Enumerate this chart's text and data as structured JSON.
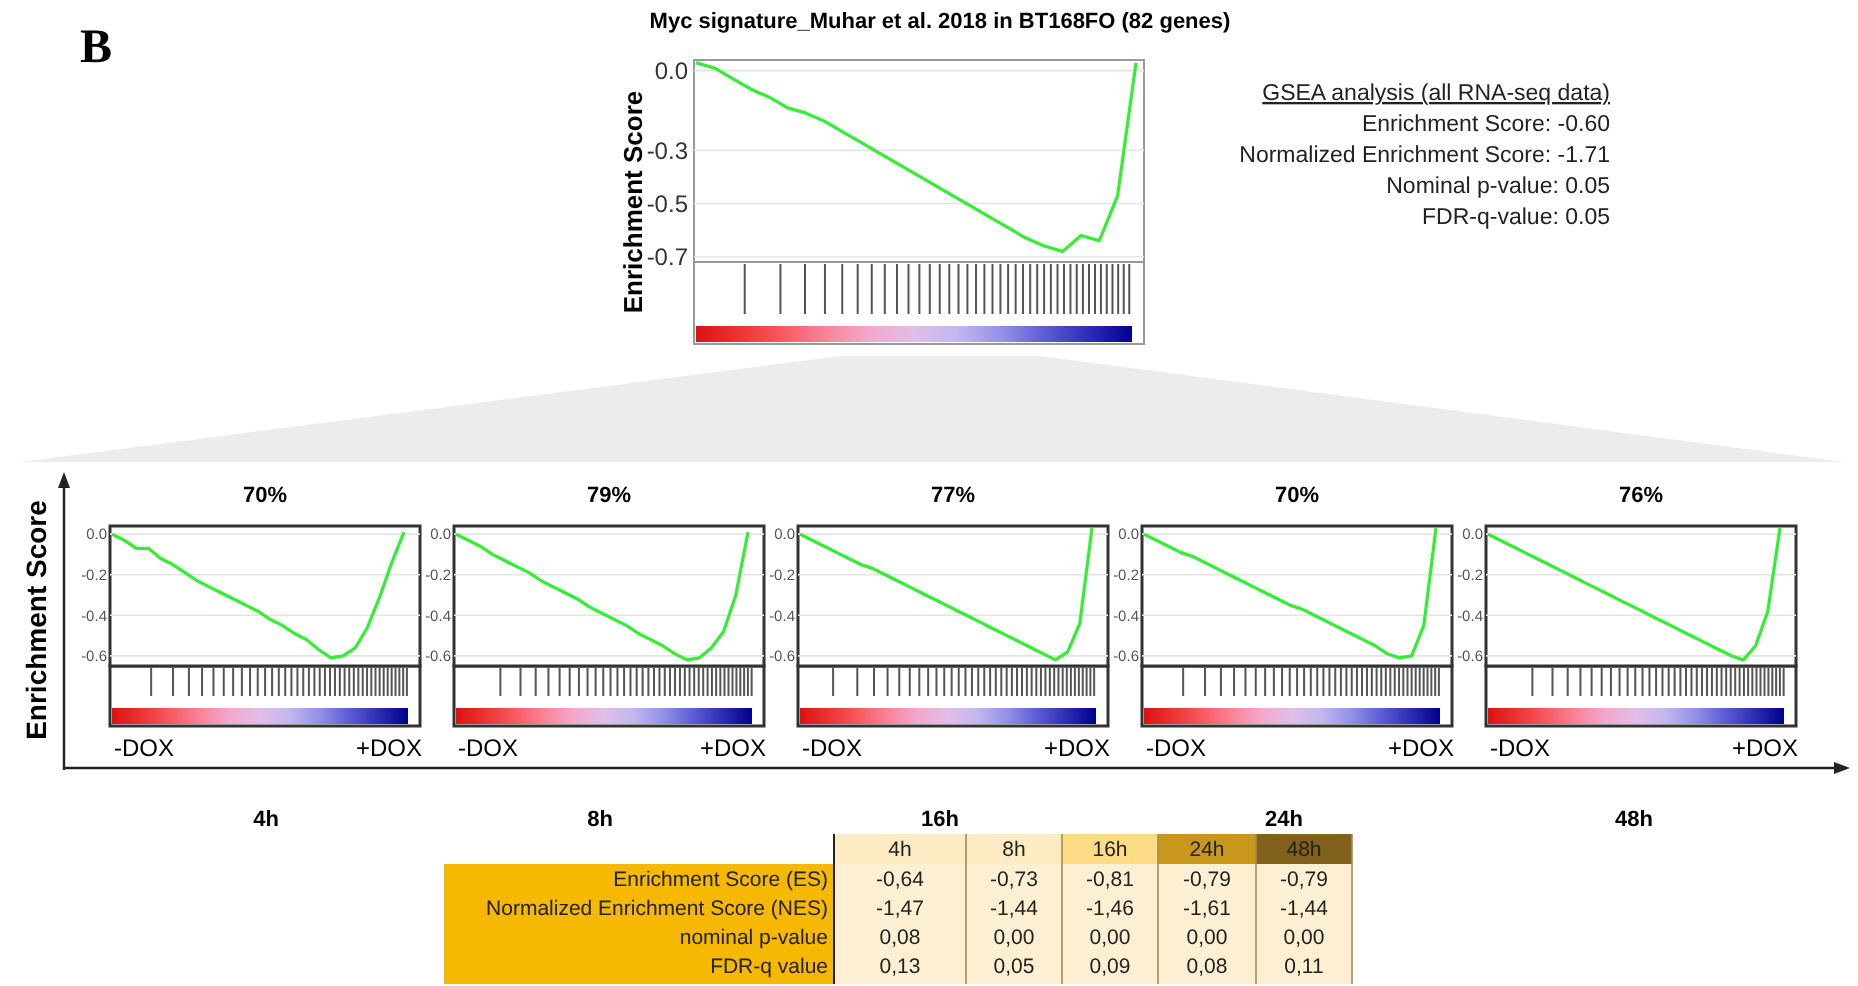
{
  "chart_data": [
    {
      "type": "line",
      "title": "Myc signature_Muhar et al. 2018 in BT168FO (82 genes)",
      "ylabel": "Enrichment Score",
      "categories": [
        null,
        null,
        null,
        null,
        null,
        null,
        null,
        null,
        null,
        null,
        null,
        null,
        null,
        null,
        null,
        null,
        null,
        null,
        null,
        null,
        null,
        null,
        null,
        null,
        null
      ],
      "ylim": [
        -0.72,
        0.04
      ],
      "yticks": [
        {
          "value": 0,
          "label": "0.0"
        },
        {
          "value": -0.3,
          "label": "-0.3"
        },
        {
          "value": -0.5,
          "label": "-0.5"
        },
        {
          "value": -0.7,
          "label": "-0.7"
        }
      ],
      "grid": "y",
      "tick_labels": "y",
      "series": [
        {
          "color": "#33ee33",
          "values": [
            0.03,
            0.01,
            -0.03,
            -0.07,
            -0.1,
            -0.14,
            -0.16,
            -0.19,
            -0.23,
            -0.27,
            -0.31,
            -0.35,
            -0.39,
            -0.43,
            -0.47,
            -0.51,
            -0.55,
            -0.59,
            -0.63,
            -0.66,
            -0.68,
            -0.62,
            -0.64,
            -0.47,
            0.03
          ]
        }
      ],
      "annotations": [
        "B",
        "GSEA analysis (all RNA-seq data)",
        "Enrichment Score: -0.60",
        "Normalized Enrichment Score: -1.71",
        "Nominal p-value: 0.05",
        "FDR-q-value: 0.05"
      ]
    },
    {
      "type": "line",
      "title": "70%",
      "xlabel": "4h",
      "ylabel": "Enrichment Score",
      "categories": [
        null,
        null,
        null,
        null,
        null,
        null,
        null,
        null,
        null,
        null,
        null,
        null,
        null,
        null,
        null,
        null,
        null,
        null,
        null,
        null,
        null,
        null,
        null,
        null,
        null
      ],
      "ylim": [
        -0.65,
        0.04
      ],
      "yticks": [
        {
          "value": 0,
          "label": "0.0"
        },
        {
          "value": -0.2,
          "label": "-0.2"
        },
        {
          "value": -0.4,
          "label": "-0.4"
        },
        {
          "value": -0.6,
          "label": "-0.6"
        }
      ],
      "grid": "y",
      "tick_labels": "y",
      "series": [
        {
          "color": "#33ee33",
          "values": [
            0.0,
            -0.03,
            -0.07,
            -0.07,
            -0.12,
            -0.15,
            -0.19,
            -0.23,
            -0.26,
            -0.29,
            -0.32,
            -0.35,
            -0.38,
            -0.42,
            -0.45,
            -0.49,
            -0.52,
            -0.57,
            -0.61,
            -0.6,
            -0.56,
            -0.46,
            -0.31,
            -0.14,
            0.01
          ]
        }
      ],
      "annotations": [
        "-DOX",
        "+DOX"
      ]
    },
    {
      "type": "line",
      "title": "79%",
      "xlabel": "8h",
      "categories": [
        null,
        null,
        null,
        null,
        null,
        null,
        null,
        null,
        null,
        null,
        null,
        null,
        null,
        null,
        null,
        null,
        null,
        null,
        null,
        null,
        null,
        null,
        null,
        null,
        null
      ],
      "ylim": [
        -0.65,
        0.04
      ],
      "yticks": [
        {
          "value": 0,
          "label": "0.0"
        },
        {
          "value": -0.2,
          "label": "-0.2"
        },
        {
          "value": -0.4,
          "label": "-0.4"
        },
        {
          "value": -0.6,
          "label": "-0.6"
        }
      ],
      "grid": "y",
      "tick_labels": "y",
      "series": [
        {
          "color": "#33ee33",
          "values": [
            0.0,
            -0.03,
            -0.06,
            -0.1,
            -0.13,
            -0.16,
            -0.19,
            -0.23,
            -0.26,
            -0.29,
            -0.32,
            -0.36,
            -0.39,
            -0.42,
            -0.45,
            -0.49,
            -0.52,
            -0.55,
            -0.59,
            -0.62,
            -0.61,
            -0.56,
            -0.48,
            -0.3,
            0.01
          ]
        }
      ],
      "annotations": [
        "-DOX",
        "+DOX"
      ]
    },
    {
      "type": "line",
      "title": "77%",
      "xlabel": "16h",
      "categories": [
        null,
        null,
        null,
        null,
        null,
        null,
        null,
        null,
        null,
        null,
        null,
        null,
        null,
        null,
        null,
        null,
        null,
        null,
        null,
        null,
        null,
        null,
        null,
        null,
        null
      ],
      "ylim": [
        -0.65,
        0.04
      ],
      "yticks": [
        {
          "value": 0,
          "label": "0.0"
        },
        {
          "value": -0.2,
          "label": "-0.2"
        },
        {
          "value": -0.4,
          "label": "-0.4"
        },
        {
          "value": -0.6,
          "label": "-0.6"
        }
      ],
      "grid": "y",
      "tick_labels": "y",
      "series": [
        {
          "color": "#33ee33",
          "values": [
            0.0,
            -0.03,
            -0.06,
            -0.09,
            -0.12,
            -0.15,
            -0.17,
            -0.2,
            -0.23,
            -0.26,
            -0.29,
            -0.32,
            -0.35,
            -0.38,
            -0.41,
            -0.44,
            -0.47,
            -0.5,
            -0.53,
            -0.56,
            -0.59,
            -0.62,
            -0.58,
            -0.44,
            0.03
          ]
        }
      ],
      "annotations": [
        "-DOX",
        "+DOX"
      ]
    },
    {
      "type": "line",
      "title": "70%",
      "xlabel": "24h",
      "categories": [
        null,
        null,
        null,
        null,
        null,
        null,
        null,
        null,
        null,
        null,
        null,
        null,
        null,
        null,
        null,
        null,
        null,
        null,
        null,
        null,
        null,
        null,
        null,
        null,
        null
      ],
      "ylim": [
        -0.65,
        0.04
      ],
      "yticks": [
        {
          "value": 0,
          "label": "0.0"
        },
        {
          "value": -0.2,
          "label": "-0.2"
        },
        {
          "value": -0.4,
          "label": "-0.4"
        },
        {
          "value": -0.6,
          "label": "-0.6"
        }
      ],
      "grid": "y",
      "tick_labels": "y",
      "series": [
        {
          "color": "#33ee33",
          "values": [
            0.0,
            -0.03,
            -0.06,
            -0.09,
            -0.11,
            -0.14,
            -0.17,
            -0.2,
            -0.23,
            -0.26,
            -0.29,
            -0.32,
            -0.35,
            -0.37,
            -0.4,
            -0.43,
            -0.46,
            -0.49,
            -0.52,
            -0.55,
            -0.59,
            -0.61,
            -0.6,
            -0.45,
            0.03
          ]
        }
      ],
      "annotations": [
        "-DOX",
        "+DOX"
      ]
    },
    {
      "type": "line",
      "title": "76%",
      "xlabel": "48h",
      "categories": [
        null,
        null,
        null,
        null,
        null,
        null,
        null,
        null,
        null,
        null,
        null,
        null,
        null,
        null,
        null,
        null,
        null,
        null,
        null,
        null,
        null,
        null,
        null,
        null,
        null
      ],
      "ylim": [
        -0.65,
        0.04
      ],
      "yticks": [
        {
          "value": 0,
          "label": "0.0"
        },
        {
          "value": -0.2,
          "label": "-0.2"
        },
        {
          "value": -0.4,
          "label": "-0.4"
        },
        {
          "value": -0.6,
          "label": "-0.6"
        }
      ],
      "grid": "y",
      "tick_labels": "y",
      "series": [
        {
          "color": "#33ee33",
          "values": [
            0.0,
            -0.03,
            -0.06,
            -0.09,
            -0.12,
            -0.15,
            -0.18,
            -0.21,
            -0.24,
            -0.27,
            -0.3,
            -0.33,
            -0.36,
            -0.39,
            -0.42,
            -0.45,
            -0.48,
            -0.51,
            -0.54,
            -0.57,
            -0.6,
            -0.62,
            -0.55,
            -0.38,
            0.03
          ]
        }
      ],
      "annotations": [
        "-DOX",
        "+DOX"
      ]
    },
    {
      "type": "other",
      "categories": [
        "4h",
        "8h",
        "16h",
        "24h",
        "48h"
      ],
      "colors": [
        "#fdebc4",
        "#fdebc4",
        "#fddc85",
        "#c9971c",
        "#80601a"
      ],
      "y_categories": [
        "Enrichment Score (ES)",
        "Normalized Enrichment Score (NES)",
        "nominal p-value",
        "FDR-q value"
      ],
      "cell_labels": [
        [
          "-0,64",
          "-0,73",
          "-0,81",
          "-0,79",
          "-0,79"
        ],
        [
          "-1,47",
          "-1,44",
          "-1,46",
          "-1,61",
          "-1,44"
        ],
        [
          "0,08",
          "0,00",
          "0,00",
          "0,00",
          "0,00"
        ],
        [
          "0,13",
          "0,05",
          "0,09",
          "0,08",
          "0,11"
        ]
      ]
    }
  ]
}
